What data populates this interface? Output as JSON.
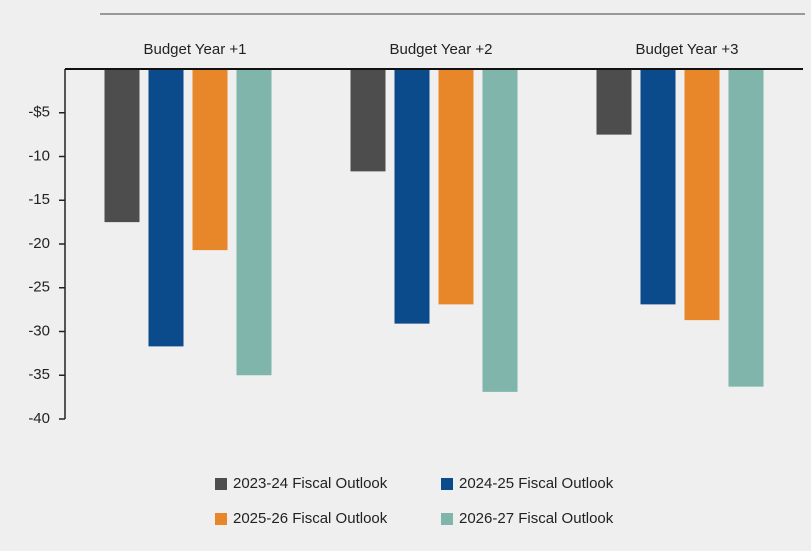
{
  "chart_data": {
    "type": "bar",
    "categories": [
      "Budget Year +1",
      "Budget Year +2",
      "Budget Year +3"
    ],
    "series": [
      {
        "name": "2023-24 Fiscal Outlook",
        "color": "#4d4d4d",
        "values": [
          -17.5,
          -11.7,
          -7.5
        ]
      },
      {
        "name": "2024-25 Fiscal Outlook",
        "color": "#0b4a8b",
        "values": [
          -31.7,
          -29.1,
          -26.9
        ]
      },
      {
        "name": "2025-26 Fiscal Outlook",
        "color": "#e8862a",
        "values": [
          -20.7,
          -26.9,
          -28.7
        ]
      },
      {
        "name": "2026-27 Fiscal Outlook",
        "color": "#7fb5ab",
        "values": [
          -35.0,
          -36.9,
          -36.3
        ]
      }
    ],
    "ylim": [
      -40,
      0
    ],
    "yticks": [
      {
        "value": -5,
        "label": "-$5"
      },
      -10,
      -15,
      -20,
      -25,
      -30,
      -35,
      -40
    ],
    "grid": false,
    "legend": "bottom"
  }
}
